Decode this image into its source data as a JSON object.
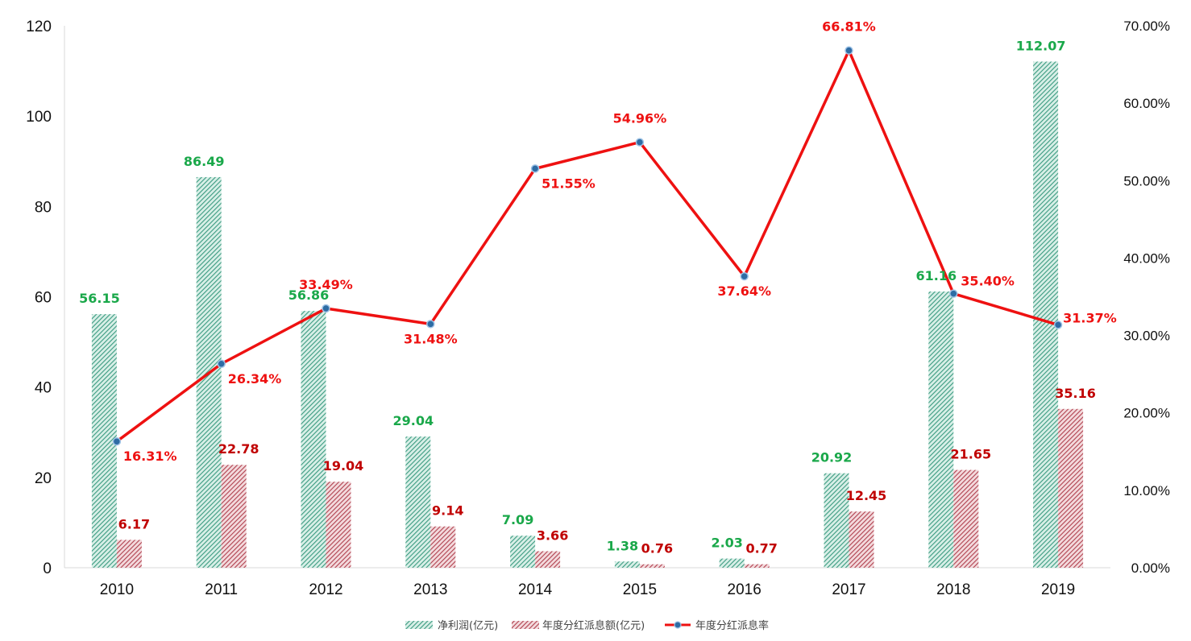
{
  "chart_data": {
    "type": "bar",
    "title": "",
    "categories": [
      "2010",
      "2011",
      "2012",
      "2013",
      "2014",
      "2015",
      "2016",
      "2017",
      "2018",
      "2019"
    ],
    "series": [
      {
        "name": "净利润(亿元)",
        "kind": "bar",
        "axis": "left",
        "color": "#3a9a80",
        "label_color": "#1aa84a",
        "values": [
          56.15,
          86.49,
          56.86,
          29.04,
          7.09,
          1.38,
          2.03,
          20.92,
          61.16,
          112.07
        ],
        "labels": [
          "56.15",
          "86.49",
          "56.86",
          "29.04",
          "7.09",
          "1.38",
          "2.03",
          "20.92",
          "61.16",
          "112.07"
        ]
      },
      {
        "name": "年度分红派息额(亿元)",
        "kind": "bar",
        "axis": "left",
        "color": "#b0404e",
        "label_color": "#c00000",
        "values": [
          6.17,
          22.78,
          19.04,
          9.14,
          3.66,
          0.76,
          0.77,
          12.45,
          21.65,
          35.16
        ],
        "labels": [
          "6.17",
          "22.78",
          "19.04",
          "9.14",
          "3.66",
          "0.76",
          "0.77",
          "12.45",
          "21.65",
          "35.16"
        ]
      },
      {
        "name": "年度分红派息率",
        "kind": "line",
        "axis": "right",
        "color": "#ee1111",
        "marker_color": "#2e6ca4",
        "values": [
          16.31,
          26.34,
          33.49,
          31.48,
          51.55,
          54.96,
          37.64,
          66.81,
          35.4,
          31.37
        ],
        "labels": [
          "16.31%",
          "26.34%",
          "33.49%",
          "31.48%",
          "51.55%",
          "54.96%",
          "37.64%",
          "66.81%",
          "35.40%",
          "31.37%"
        ]
      }
    ],
    "y_left": {
      "range": [
        0,
        120
      ],
      "ticks": [
        "0",
        "20",
        "40",
        "60",
        "80",
        "100",
        "120"
      ]
    },
    "y_right": {
      "range": [
        0,
        70
      ],
      "ticks": [
        "0.00%",
        "10.00%",
        "20.00%",
        "30.00%",
        "40.00%",
        "50.00%",
        "60.00%",
        "70.00%"
      ]
    },
    "grid": false,
    "legend_position": "bottom"
  }
}
